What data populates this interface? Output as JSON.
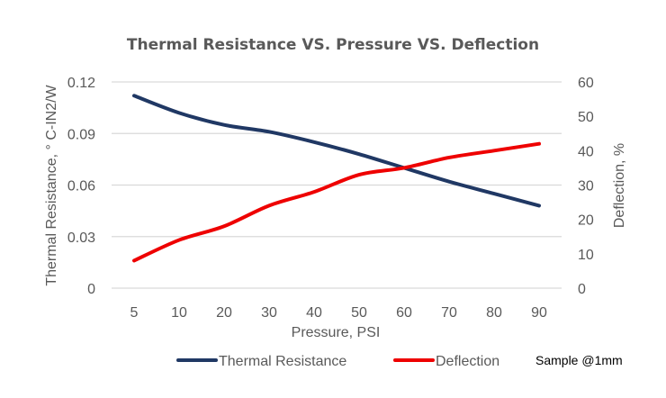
{
  "chart_data": {
    "type": "line",
    "title": "Thermal Resistance VS. Pressure VS. Deflection",
    "xlabel": "Pressure, PSI",
    "ylabel": "Thermal Resistance, ° C-IN2/W",
    "y2label": "Deflection, %",
    "categories": [
      "5",
      "10",
      "20",
      "30",
      "40",
      "50",
      "60",
      "70",
      "80",
      "90"
    ],
    "ylim": [
      0,
      0.12
    ],
    "yticks": [
      "0",
      "0.03",
      "0.06",
      "0.09",
      "0.12"
    ],
    "y2lim": [
      0,
      60
    ],
    "y2ticks": [
      "0",
      "10",
      "20",
      "30",
      "40",
      "50",
      "60"
    ],
    "grid": true,
    "legend_position": "bottom",
    "series": [
      {
        "name": "Thermal Resistance",
        "axis": "left",
        "color": "#203864",
        "values": [
          0.112,
          0.102,
          0.095,
          0.091,
          0.085,
          0.078,
          0.07,
          0.062,
          0.055,
          0.048
        ]
      },
      {
        "name": "Deflection",
        "axis": "right",
        "color": "#ee0000",
        "values": [
          8,
          14,
          18,
          24,
          28,
          33,
          35,
          38,
          40,
          42
        ]
      }
    ],
    "annotation": "Sample @1mm"
  }
}
